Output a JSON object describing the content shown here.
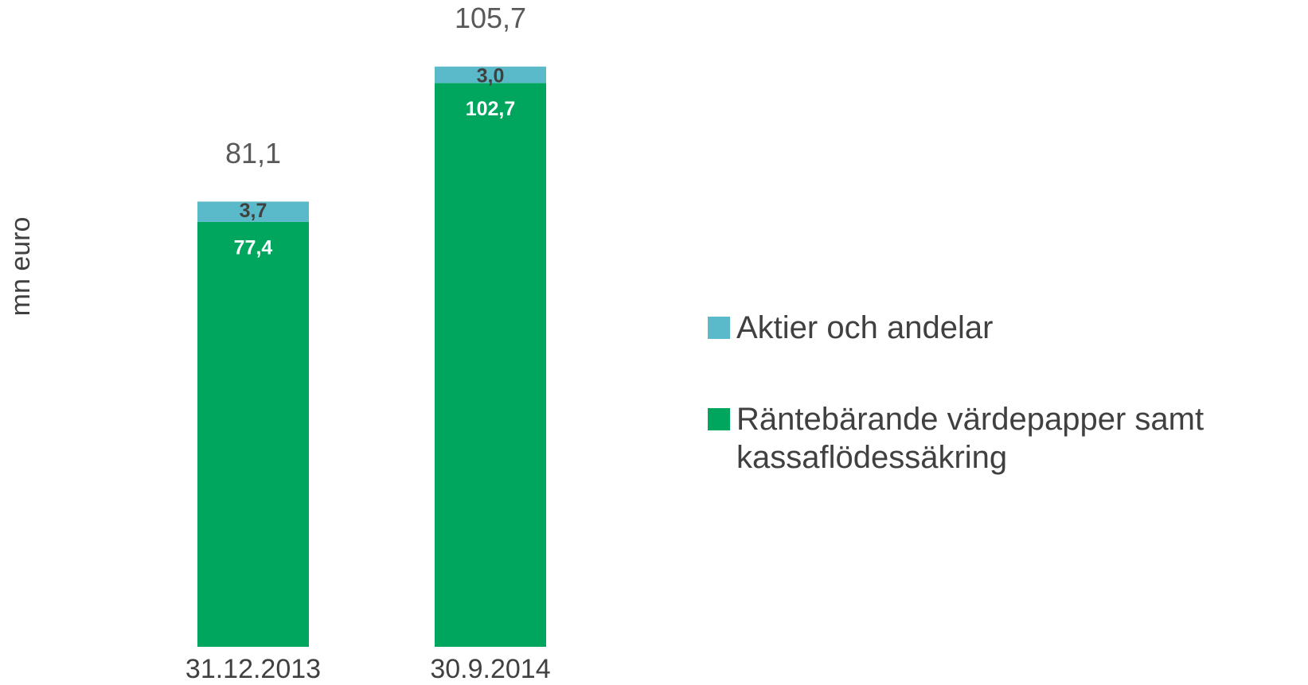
{
  "chart_data": {
    "type": "stacked-bar",
    "y_label": "mn euro",
    "categories": [
      "31.12.2013",
      "30.9.2014"
    ],
    "series": [
      {
        "name": "Räntebärande värdepapper samt kassaflödessäkring",
        "color": "#00a65d",
        "values": [
          77.4,
          102.7
        ],
        "value_labels": [
          "77,4",
          "102,7"
        ]
      },
      {
        "name": "Aktier och andelar",
        "color": "#5bbac9",
        "values": [
          3.7,
          3.0
        ],
        "value_labels": [
          "3,7",
          "3,0"
        ]
      }
    ],
    "totals": [
      81.1,
      105.7
    ],
    "total_labels": [
      "81,1",
      "105,7"
    ],
    "ylim": [
      0,
      110
    ]
  }
}
